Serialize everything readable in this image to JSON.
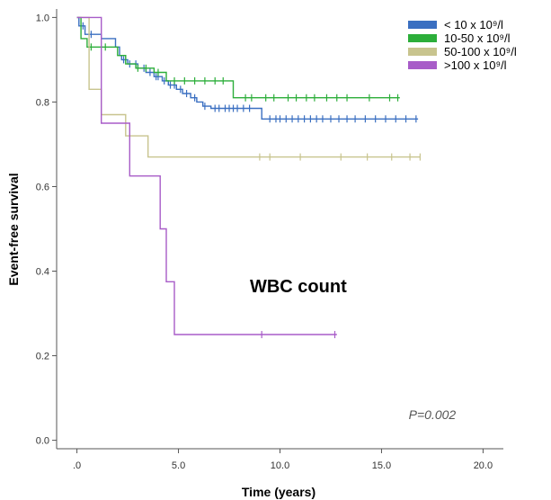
{
  "chart_data": {
    "type": "line",
    "subtype": "kaplan-meier",
    "title": "",
    "xlabel": "Time (years)",
    "ylabel": "Event-free survival",
    "xlim": [
      -1,
      21
    ],
    "ylim": [
      -0.02,
      1.02
    ],
    "x_ticks": [
      0,
      5,
      10,
      15,
      20
    ],
    "x_tick_labels": [
      ".0",
      "5.0",
      "10.0",
      "15.0",
      "20.0"
    ],
    "y_ticks": [
      0,
      0.2,
      0.4,
      0.6,
      0.8,
      1.0
    ],
    "y_tick_labels": [
      "0.0",
      "0.2",
      "0.4",
      "0.6",
      "0.8",
      "1.0"
    ],
    "grid": false,
    "legend_position": "top-right",
    "annotations": [
      {
        "text": "WBC count",
        "x": 12.5,
        "y": 0.35,
        "style": "bold-large"
      },
      {
        "text": "P=0.002",
        "x": 17.5,
        "y": 0.05,
        "style": "italic"
      }
    ],
    "series": [
      {
        "name": "< 10 x 10⁹/l",
        "color": "#3a6fc1",
        "steps": [
          [
            0,
            1.0
          ],
          [
            0.1,
            0.98
          ],
          [
            0.4,
            0.96
          ],
          [
            1.2,
            0.95
          ],
          [
            1.9,
            0.93
          ],
          [
            2.1,
            0.91
          ],
          [
            2.2,
            0.9
          ],
          [
            2.5,
            0.89
          ],
          [
            3.0,
            0.88
          ],
          [
            3.4,
            0.87
          ],
          [
            3.8,
            0.86
          ],
          [
            4.2,
            0.85
          ],
          [
            4.5,
            0.84
          ],
          [
            4.9,
            0.83
          ],
          [
            5.2,
            0.82
          ],
          [
            5.6,
            0.81
          ],
          [
            5.9,
            0.8
          ],
          [
            6.2,
            0.79
          ],
          [
            6.6,
            0.785
          ],
          [
            9.1,
            0.76
          ],
          [
            16.8,
            0.76
          ]
        ],
        "censors": [
          0.3,
          0.7,
          2.3,
          2.6,
          2.9,
          3.3,
          3.6,
          3.9,
          4.0,
          4.3,
          4.6,
          4.8,
          5.1,
          5.4,
          5.8,
          6.3,
          6.8,
          7.0,
          7.3,
          7.5,
          7.7,
          7.9,
          8.2,
          8.5,
          9.5,
          9.8,
          10.0,
          10.3,
          10.6,
          10.9,
          11.2,
          11.5,
          11.8,
          12.1,
          12.5,
          12.9,
          13.3,
          13.7,
          14.2,
          14.7,
          15.2,
          15.7,
          16.2,
          16.7
        ]
      },
      {
        "name": "10-50 x 10⁹/l",
        "color": "#2cae3a",
        "steps": [
          [
            0,
            1.0
          ],
          [
            0.2,
            0.95
          ],
          [
            0.5,
            0.93
          ],
          [
            2.0,
            0.91
          ],
          [
            2.4,
            0.89
          ],
          [
            2.9,
            0.88
          ],
          [
            3.8,
            0.87
          ],
          [
            4.4,
            0.85
          ],
          [
            7.7,
            0.81
          ],
          [
            15.9,
            0.81
          ]
        ],
        "censors": [
          0.7,
          1.4,
          3.0,
          3.4,
          4.0,
          4.8,
          5.3,
          5.8,
          6.3,
          6.8,
          7.2,
          8.3,
          8.6,
          9.3,
          9.7,
          10.4,
          10.8,
          11.3,
          11.7,
          12.3,
          12.8,
          13.3,
          14.4,
          15.4,
          15.8
        ]
      },
      {
        "name": "50-100 x 10⁹/l",
        "color": "#c8c48e",
        "steps": [
          [
            0,
            1.0
          ],
          [
            0.6,
            0.83
          ],
          [
            1.2,
            0.77
          ],
          [
            2.4,
            0.72
          ],
          [
            3.5,
            0.67
          ],
          [
            16.9,
            0.67
          ]
        ],
        "censors": [
          9.0,
          9.5,
          11.0,
          13.0,
          14.3,
          15.5,
          16.4,
          16.9
        ]
      },
      {
        "name": ">100 x 10⁹/l",
        "color": "#a85cc8",
        "steps": [
          [
            0,
            1.0
          ],
          [
            1.2,
            0.75
          ],
          [
            2.6,
            0.625
          ],
          [
            4.1,
            0.5
          ],
          [
            4.4,
            0.375
          ],
          [
            4.8,
            0.25
          ],
          [
            12.8,
            0.25
          ]
        ],
        "censors": [
          9.1,
          12.7
        ]
      }
    ]
  }
}
